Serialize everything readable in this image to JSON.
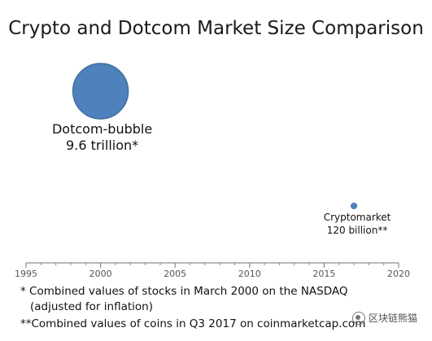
{
  "chart_data": {
    "type": "bubble",
    "title": "Crypto and Dotcom Market Size Comparison",
    "xlabel": "",
    "ylabel": "",
    "xlim": [
      1995,
      2020
    ],
    "x_ticks": [
      1995,
      2000,
      2005,
      2010,
      2015,
      2020
    ],
    "grid": false,
    "points": [
      {
        "label_line1": "Dotcom-bubble",
        "label_line2": "9.6 trillion*",
        "x": 2000,
        "value_usd_billion": 9600,
        "color": "#4f81bd"
      },
      {
        "label_line1": "Cryptomarket",
        "label_line2": "120 billion**",
        "x": 2017,
        "value_usd_billion": 120,
        "color": "#4f81bd"
      }
    ]
  },
  "footnotes": {
    "line1": "*  Combined values of stocks in March 2000 on the NASDAQ",
    "line1b": "(adjusted for inflation)",
    "line2": "**Combined values of coins in Q3 2017  on coinmarketcap.com"
  },
  "watermark": {
    "text": "区块链熊猫",
    "icon": "wechat-logo-icon"
  }
}
